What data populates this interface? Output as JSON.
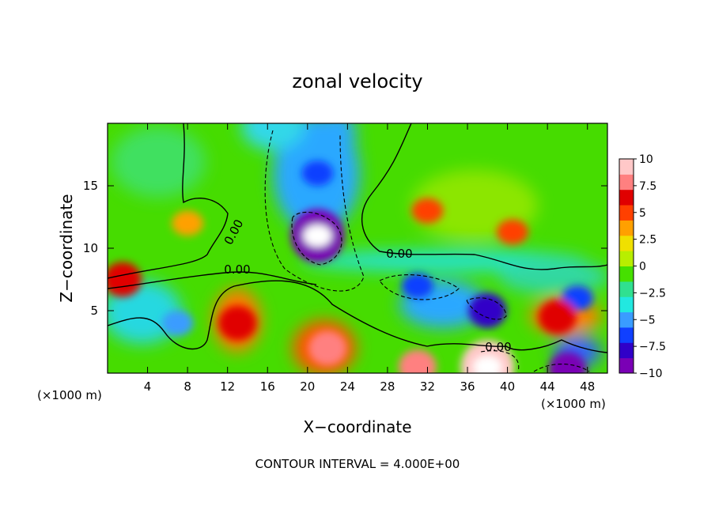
{
  "chart_data": {
    "type": "heatmap",
    "title": "zonal velocity",
    "xlabel": "X−coordinate",
    "ylabel": "Z−coordinate",
    "x_unit": "(×1000 m)",
    "x_unit_right": "(×1000 m)",
    "xlim": [
      0,
      50
    ],
    "ylim": [
      0,
      20
    ],
    "x_ticks": [
      4,
      8,
      12,
      16,
      20,
      24,
      28,
      32,
      36,
      40,
      44,
      48
    ],
    "y_ticks": [
      5,
      10,
      15
    ],
    "colorbar": {
      "ticks": [
        "10",
        "7.5",
        "5",
        "2.5",
        "0",
        "−2.5",
        "−5",
        "−7.5",
        "−10"
      ],
      "range": [
        -10,
        10
      ],
      "colors": [
        "#7a00b5",
        "#3000c8",
        "#1040ff",
        "#3a9cff",
        "#22e8e0",
        "#30e090",
        "#46e000",
        "#b8ee00",
        "#f0e000",
        "#ffa000",
        "#ff4000",
        "#e00000",
        "#ff8080",
        "#ffc8c8"
      ]
    },
    "contour_label": "0.00",
    "note": "CONTOUR INTERVAL = 4.000E+00",
    "features": [
      {
        "x": 21,
        "y": 11,
        "value": -11,
        "desc": "strong negative core"
      },
      {
        "x": 21,
        "y": 16,
        "value": -6
      },
      {
        "x": 31,
        "y": 7,
        "value": -6
      },
      {
        "x": 38,
        "y": 5,
        "value": -8
      },
      {
        "x": 47,
        "y": 6,
        "value": -6
      },
      {
        "x": 7,
        "y": 4,
        "value": -5
      },
      {
        "x": 13,
        "y": 4,
        "value": 7
      },
      {
        "x": 22,
        "y": 2,
        "value": 8
      },
      {
        "x": 38,
        "y": 0.5,
        "value": 11
      },
      {
        "x": 31,
        "y": 0.5,
        "value": 8
      },
      {
        "x": 45,
        "y": 4.5,
        "value": 7
      },
      {
        "x": 32,
        "y": 13,
        "value": 5
      },
      {
        "x": 40.5,
        "y": 11.3,
        "value": 4.5
      },
      {
        "x": 1.5,
        "y": 7.5,
        "value": 7
      },
      {
        "x": 8,
        "y": 12,
        "value": 3.5
      },
      {
        "x": 46,
        "y": 0.3,
        "value": -10
      }
    ]
  }
}
